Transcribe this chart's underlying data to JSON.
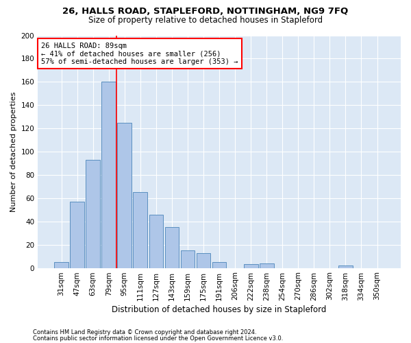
{
  "title1": "26, HALLS ROAD, STAPLEFORD, NOTTINGHAM, NG9 7FQ",
  "title2": "Size of property relative to detached houses in Stapleford",
  "xlabel": "Distribution of detached houses by size in Stapleford",
  "ylabel": "Number of detached properties",
  "footer1": "Contains HM Land Registry data © Crown copyright and database right 2024.",
  "footer2": "Contains public sector information licensed under the Open Government Licence v3.0.",
  "categories": [
    "31sqm",
    "47sqm",
    "63sqm",
    "79sqm",
    "95sqm",
    "111sqm",
    "127sqm",
    "143sqm",
    "159sqm",
    "175sqm",
    "191sqm",
    "206sqm",
    "222sqm",
    "238sqm",
    "254sqm",
    "270sqm",
    "286sqm",
    "302sqm",
    "318sqm",
    "334sqm",
    "350sqm"
  ],
  "values": [
    5,
    57,
    93,
    160,
    125,
    65,
    46,
    35,
    15,
    13,
    5,
    0,
    3,
    4,
    0,
    0,
    0,
    0,
    2,
    0,
    0
  ],
  "bar_color": "#aec6e8",
  "bar_edge_color": "#5a8fc0",
  "vline_color": "red",
  "vline_xindex": 3.5,
  "annotation_line1": "26 HALLS ROAD: 89sqm",
  "annotation_line2": "← 41% of detached houses are smaller (256)",
  "annotation_line3": "57% of semi-detached houses are larger (353) →",
  "annotation_box_color": "white",
  "annotation_box_edge_color": "red",
  "annotation_fontsize": 7.5,
  "ylim": [
    0,
    200
  ],
  "yticks": [
    0,
    20,
    40,
    60,
    80,
    100,
    120,
    140,
    160,
    180,
    200
  ],
  "plot_bg_color": "#dce8f5",
  "title1_fontsize": 9.5,
  "title2_fontsize": 8.5,
  "xlabel_fontsize": 8.5,
  "ylabel_fontsize": 8.0,
  "tick_fontsize": 7.5
}
